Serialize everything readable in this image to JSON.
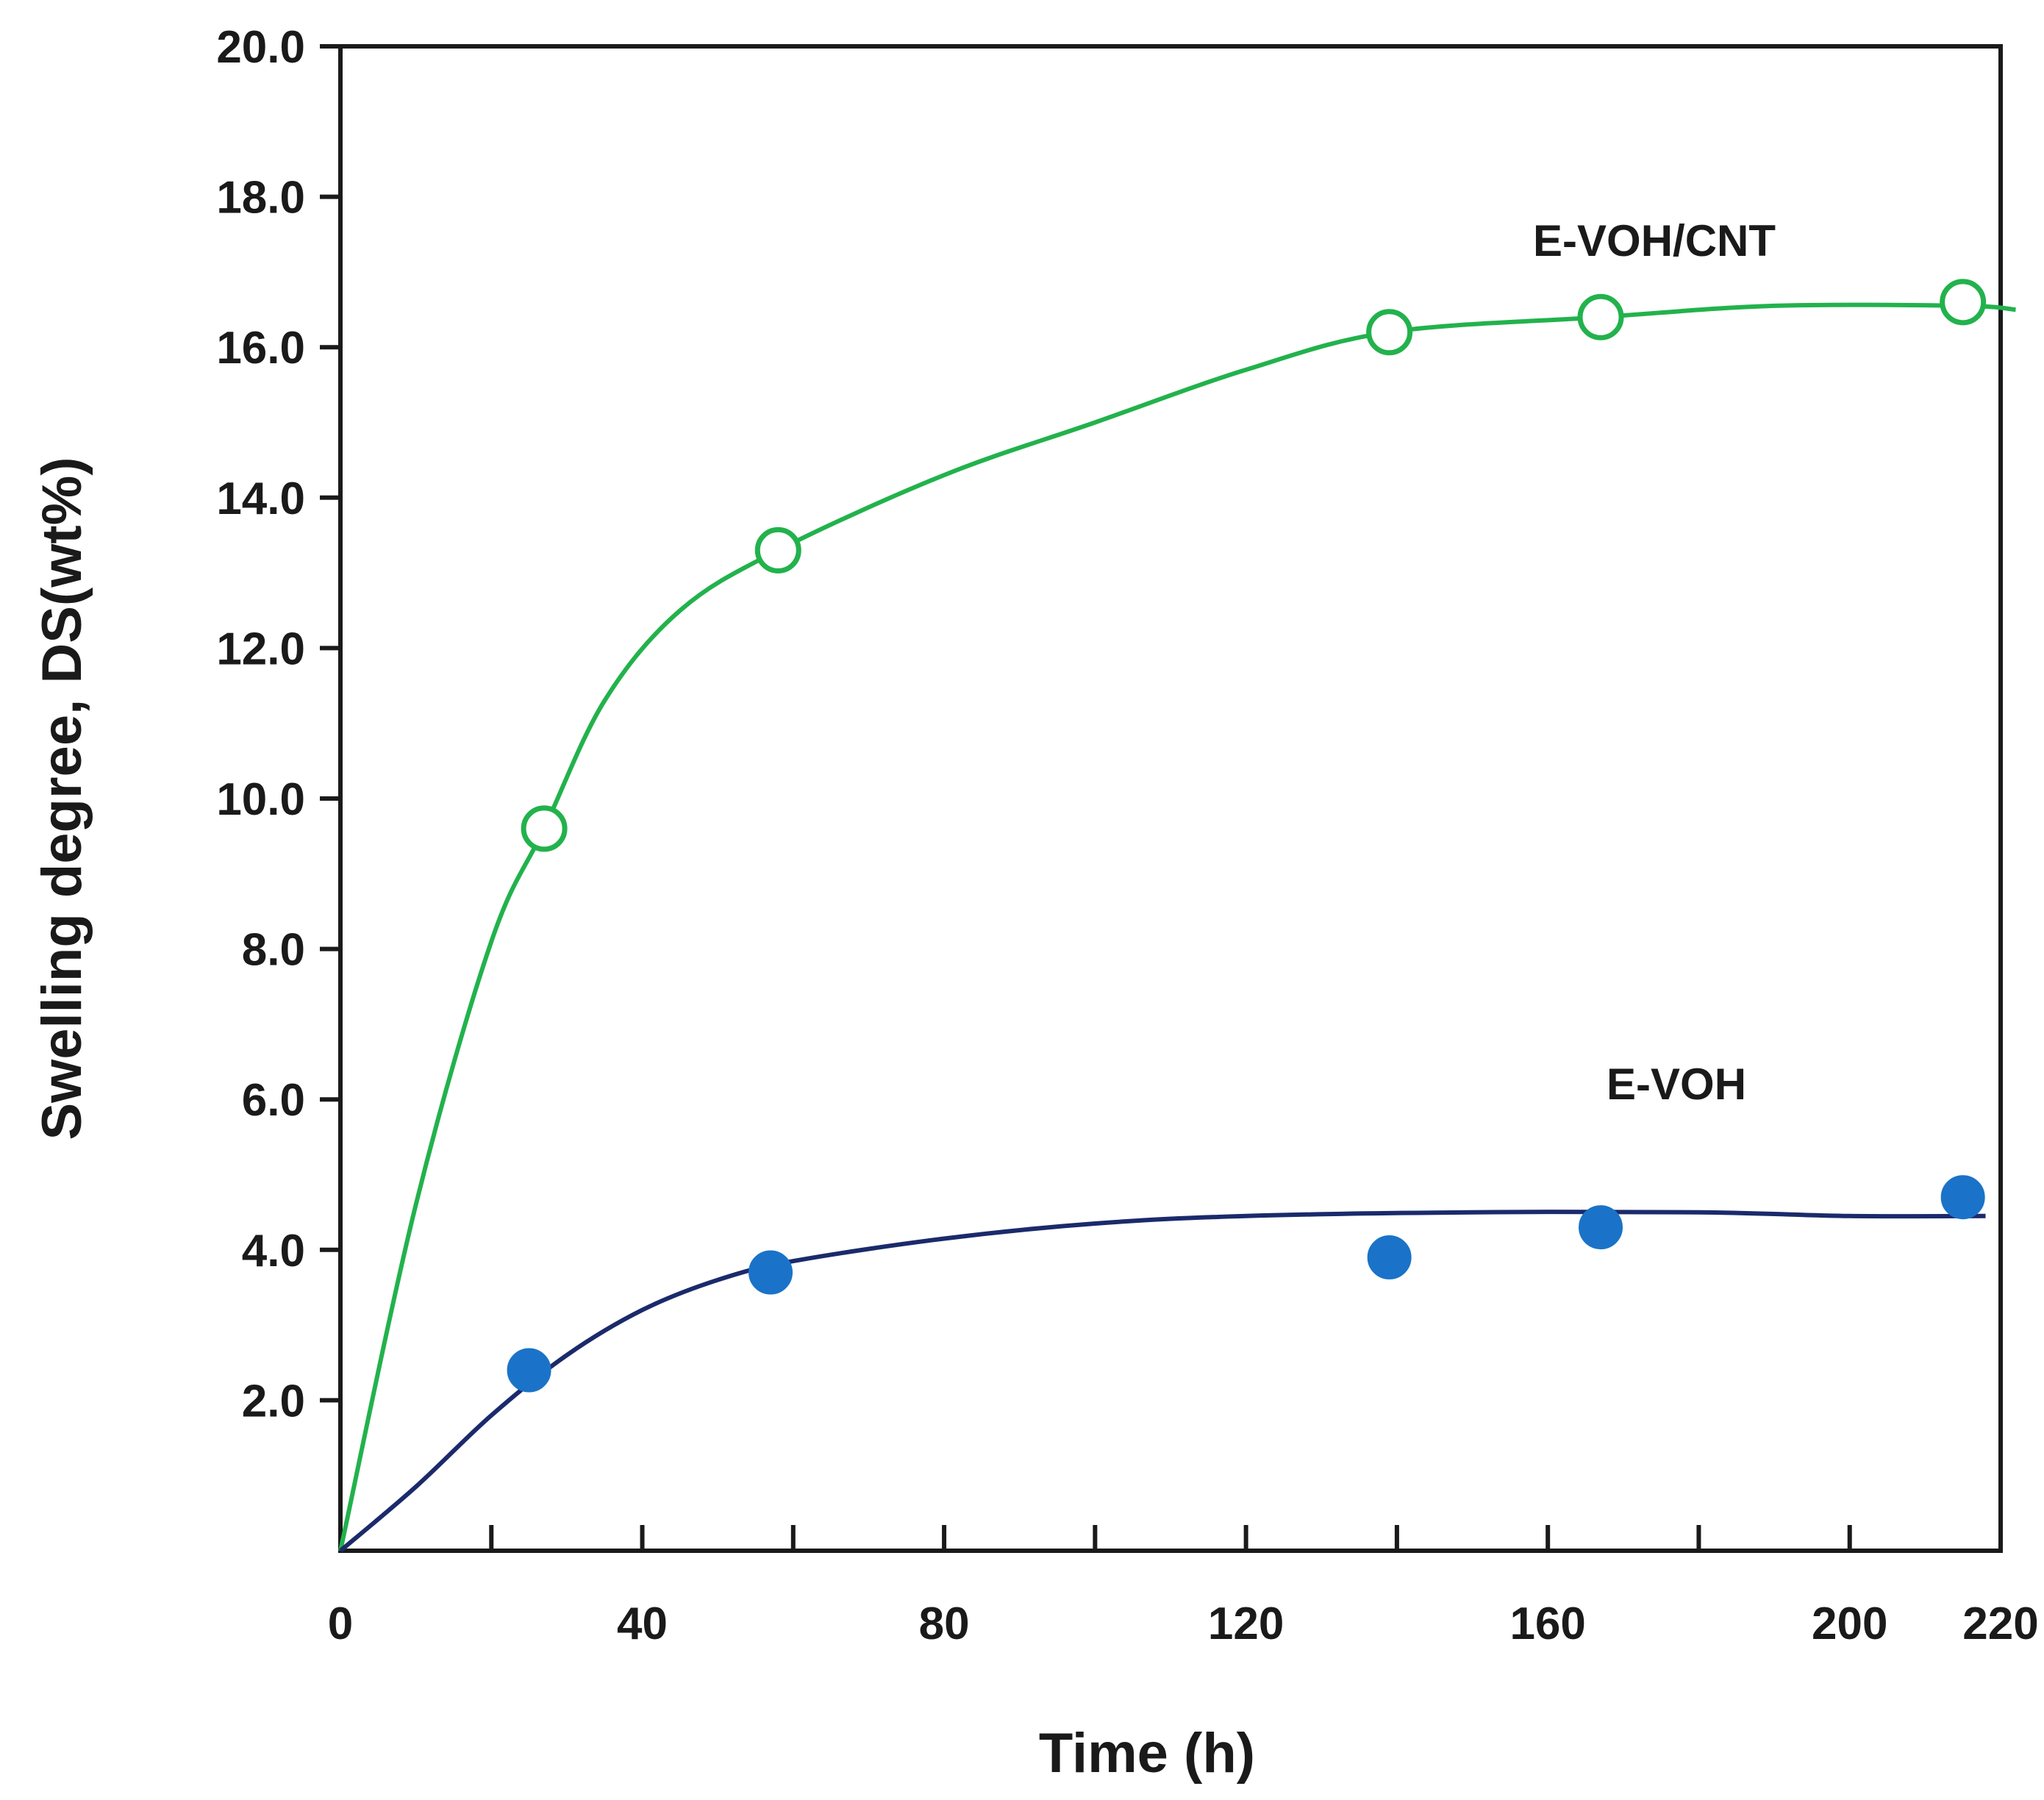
{
  "chart_data": {
    "type": "scatter",
    "title": "",
    "xlabel": "Time (h)",
    "ylabel": "Swelling degree, DS(wt%)",
    "xlim": [
      0,
      220
    ],
    "ylim": [
      0,
      20
    ],
    "x_ticks": [
      0,
      40,
      80,
      120,
      160,
      200,
      220
    ],
    "x_tick_labels": [
      "0",
      "40",
      "80",
      "120",
      "160",
      "200",
      "220"
    ],
    "x_minor_ticks": [
      20,
      60,
      100,
      140,
      180
    ],
    "y_ticks": [
      2,
      4,
      6,
      8,
      10,
      12,
      14,
      16,
      18,
      20
    ],
    "y_tick_labels": [
      "2.0",
      "4.0",
      "6.0",
      "8.0",
      "10.0",
      "12.0",
      "14.0",
      "16.0",
      "18.0",
      "20.0"
    ],
    "grid": false,
    "series": [
      {
        "name": "E-VOH/CNT",
        "marker": "open-circle",
        "color": "#22b24c",
        "points": [
          {
            "x": 27,
            "y": 9.6
          },
          {
            "x": 58,
            "y": 13.3
          },
          {
            "x": 139,
            "y": 16.2
          },
          {
            "x": 167,
            "y": 16.4
          },
          {
            "x": 215,
            "y": 16.6
          }
        ],
        "fit_curve": [
          [
            0,
            0
          ],
          [
            10,
            4.6
          ],
          [
            20,
            8.1
          ],
          [
            27,
            9.6
          ],
          [
            35,
            11.3
          ],
          [
            45,
            12.5
          ],
          [
            58,
            13.3
          ],
          [
            80,
            14.3
          ],
          [
            100,
            15.0
          ],
          [
            120,
            15.7
          ],
          [
            139,
            16.2
          ],
          [
            167,
            16.4
          ],
          [
            190,
            16.55
          ],
          [
            215,
            16.55
          ],
          [
            222,
            16.5
          ]
        ]
      },
      {
        "name": "E-VOH",
        "marker": "filled-circle",
        "color": "#1a73c8",
        "line_color": "#1b2a6b",
        "points": [
          {
            "x": 25,
            "y": 2.4
          },
          {
            "x": 57,
            "y": 3.7
          },
          {
            "x": 139,
            "y": 3.9
          },
          {
            "x": 167,
            "y": 4.3
          },
          {
            "x": 215,
            "y": 4.7
          }
        ],
        "fit_curve": [
          [
            0,
            0
          ],
          [
            10,
            0.85
          ],
          [
            20,
            1.8
          ],
          [
            30,
            2.6
          ],
          [
            40,
            3.2
          ],
          [
            50,
            3.6
          ],
          [
            60,
            3.85
          ],
          [
            80,
            4.15
          ],
          [
            100,
            4.35
          ],
          [
            120,
            4.45
          ],
          [
            150,
            4.5
          ],
          [
            180,
            4.5
          ],
          [
            200,
            4.45
          ],
          [
            218,
            4.45
          ]
        ]
      }
    ]
  }
}
